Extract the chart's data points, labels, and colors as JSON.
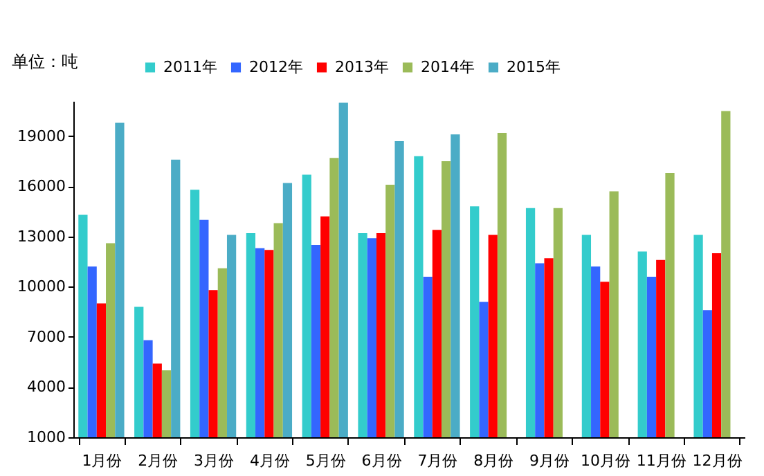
{
  "chart_data": {
    "type": "bar",
    "ylabel": "单位：吨",
    "categories": [
      "1月份",
      "2月份",
      "3月份",
      "4月份",
      "5月份",
      "6月份",
      "7月份",
      "8月份",
      "9月份",
      "10月份",
      "11月份",
      "12月份"
    ],
    "series": [
      {
        "name": "2011年",
        "color": "#33cccc",
        "values": [
          14300,
          8800,
          15800,
          13200,
          16700,
          13200,
          17800,
          14800,
          14700,
          13100,
          12100,
          13100
        ]
      },
      {
        "name": "2012年",
        "color": "#3366ff",
        "values": [
          11200,
          6800,
          14000,
          12300,
          12500,
          12900,
          10600,
          9100,
          11400,
          11200,
          10600,
          8600
        ]
      },
      {
        "name": "2013年",
        "color": "#ff0000",
        "values": [
          9000,
          5400,
          9800,
          12200,
          14200,
          13200,
          13400,
          13100,
          11700,
          10300,
          11600,
          12000
        ]
      },
      {
        "name": "2014年",
        "color": "#9bbb59",
        "values": [
          12600,
          5000,
          11100,
          13800,
          17700,
          16100,
          17500,
          19200,
          14700,
          15700,
          16800,
          20500
        ]
      },
      {
        "name": "2015年",
        "color": "#4bacc6",
        "values": [
          19800,
          17600,
          13100,
          16200,
          21000,
          18700,
          19100,
          null,
          null,
          null,
          null,
          null
        ]
      }
    ],
    "ylim": [
      1000,
      21100
    ],
    "yticks": [
      1000,
      4000,
      7000,
      10000,
      13000,
      16000,
      19000
    ],
    "grid": false,
    "legend": "top"
  }
}
